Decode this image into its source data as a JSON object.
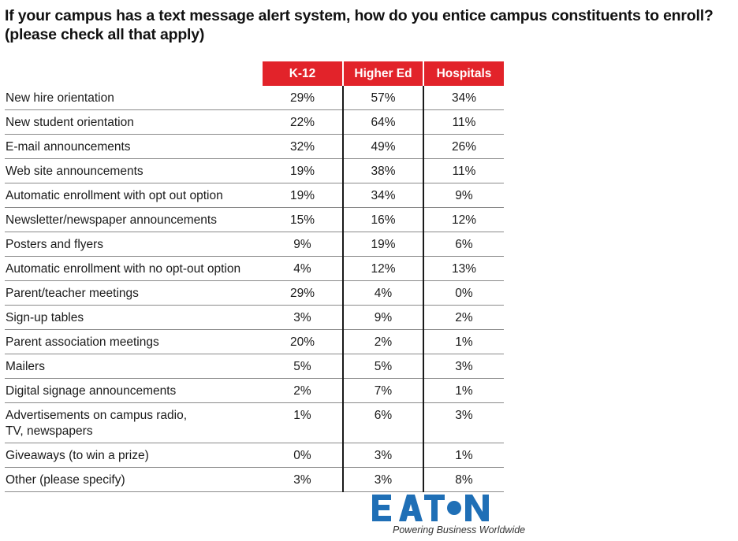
{
  "title": "If your campus has a text message alert system, how do you entice campus constituents to enroll? (please check all that apply)",
  "chart_data": {
    "type": "table",
    "columns": [
      "K-12",
      "Higher Ed",
      "Hospitals"
    ],
    "rows": [
      {
        "label": "New hire orientation",
        "values": [
          "29%",
          "57%",
          "34%"
        ]
      },
      {
        "label": "New student orientation",
        "values": [
          "22%",
          "64%",
          "11%"
        ]
      },
      {
        "label": "E-mail announcements",
        "values": [
          "32%",
          "49%",
          "26%"
        ]
      },
      {
        "label": "Web site announcements",
        "values": [
          "19%",
          "38%",
          "11%"
        ]
      },
      {
        "label": "Automatic enrollment with opt out option",
        "values": [
          "19%",
          "34%",
          "9%"
        ]
      },
      {
        "label": "Newsletter/newspaper announcements",
        "values": [
          "15%",
          "16%",
          "12%"
        ]
      },
      {
        "label": "Posters and flyers",
        "values": [
          "9%",
          "19%",
          "6%"
        ]
      },
      {
        "label": "Automatic enrollment with no opt-out option",
        "values": [
          "4%",
          "12%",
          "13%"
        ]
      },
      {
        "label": "Parent/teacher meetings",
        "values": [
          "29%",
          "4%",
          "0%"
        ]
      },
      {
        "label": "Sign-up tables",
        "values": [
          "3%",
          "9%",
          "2%"
        ]
      },
      {
        "label": "Parent association meetings",
        "values": [
          "20%",
          "2%",
          "1%"
        ]
      },
      {
        "label": "Mailers",
        "values": [
          "5%",
          "5%",
          "3%"
        ]
      },
      {
        "label": "Digital signage announcements",
        "values": [
          "2%",
          "7%",
          "1%"
        ]
      },
      {
        "label": "Advertisements on campus radio, TV, newspapers",
        "values": [
          "1%",
          "6%",
          "3%"
        ]
      },
      {
        "label": "Giveaways (to win a prize)",
        "values": [
          "0%",
          "3%",
          "1%"
        ]
      },
      {
        "label": "Other (please specify)",
        "values": [
          "3%",
          "3%",
          "8%"
        ]
      }
    ]
  },
  "logo": {
    "name": "EATON",
    "tagline": "Powering Business Worldwide",
    "color": "#1f6fb6"
  },
  "colors": {
    "header": "#e2232a"
  }
}
